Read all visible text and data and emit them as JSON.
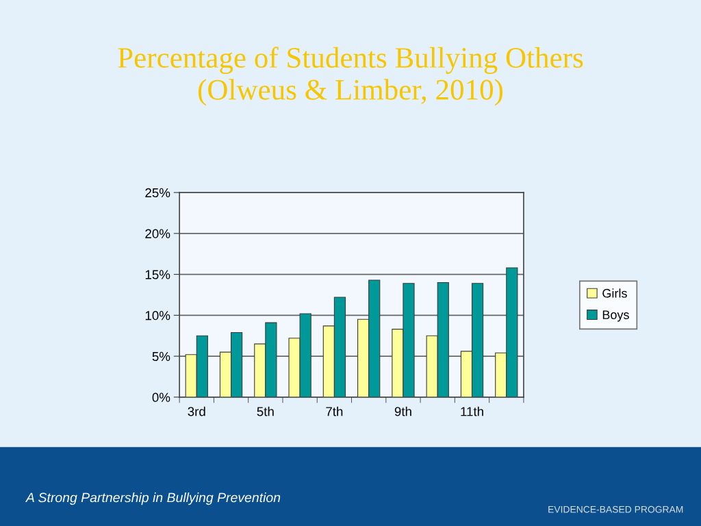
{
  "chart_data": {
    "type": "bar",
    "title": "Percentage of Students Bullying Others\n(Olweus & Limber, 2010)",
    "categories": [
      "3rd",
      null,
      "5th",
      null,
      "7th",
      null,
      "9th",
      null,
      "11th",
      null
    ],
    "series": [
      {
        "name": "Girls",
        "color": "#ffff99",
        "values": [
          5.2,
          5.5,
          6.5,
          7.2,
          8.7,
          9.5,
          8.3,
          7.5,
          5.6,
          5.4
        ]
      },
      {
        "name": "Boys",
        "color": "#009999",
        "values": [
          7.5,
          7.9,
          9.1,
          10.2,
          12.2,
          14.3,
          13.9,
          14.0,
          13.9,
          15.8
        ]
      }
    ],
    "ylim": [
      0,
      25
    ],
    "yticks": [
      {
        "value": 0,
        "label": "0%"
      },
      {
        "value": 5,
        "label": "5%"
      },
      {
        "value": 10,
        "label": "10%"
      },
      {
        "value": 15,
        "label": "15%"
      },
      {
        "value": 20,
        "label": "20%"
      },
      {
        "value": 25,
        "label": "25%"
      }
    ],
    "grid": "y",
    "legend": "right",
    "annotations": [
      "A Strong Partnership in Bullying Prevention",
      "EVIDENCE-BASED PROGRAM"
    ]
  }
}
